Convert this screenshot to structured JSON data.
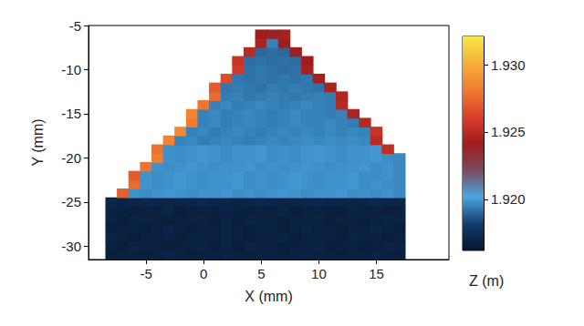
{
  "chart_data": {
    "type": "scatter",
    "x_label": "X (mm)",
    "y_label": "Y (mm)",
    "xlim": [
      -10,
      21.3
    ],
    "ylim": [
      -31.5,
      -5
    ],
    "xticks": [
      -5,
      0,
      5,
      10,
      15
    ],
    "yticks": [
      -30,
      -25,
      -20,
      -15,
      -10,
      -5
    ],
    "grid": false,
    "marker": "square",
    "colorbar": {
      "label": "Z (m)",
      "range": [
        1.9162,
        1.9321
      ],
      "ticks": [
        {
          "value": 1.92,
          "label": "1.920"
        },
        {
          "value": 1.925,
          "label": "1.925"
        },
        {
          "value": 1.93,
          "label": "1.930"
        }
      ]
    },
    "x": [
      -8,
      -7,
      -6,
      -5,
      -4,
      -3,
      -2,
      -1,
      0,
      1,
      2,
      3,
      4,
      5,
      6,
      7,
      8,
      9,
      10,
      11,
      12,
      13,
      14,
      15,
      16,
      17
    ],
    "y": [
      -31,
      -30,
      -29,
      -28,
      -27,
      -26,
      -25,
      -24,
      -23,
      -22,
      -21,
      -20,
      -19,
      -18,
      -17,
      -16,
      -15,
      -14,
      -13,
      -12,
      -11,
      -10,
      -9,
      -8,
      -7,
      -6
    ],
    "z": [
      [
        1.9167,
        1.9168,
        1.9168,
        1.9167,
        1.9168,
        1.9169,
        1.9168,
        1.9167,
        1.9168,
        1.9168,
        1.9169,
        1.9168,
        1.9167,
        1.9168,
        1.9168,
        1.9167,
        1.9168,
        1.9169,
        1.9168,
        1.9168,
        1.9167,
        1.9168,
        1.9168,
        1.9169,
        1.9168,
        1.9167
      ],
      [
        1.9168,
        1.9167,
        1.9169,
        1.9168,
        1.9168,
        1.9167,
        1.9168,
        1.9168,
        1.9169,
        1.9167,
        1.9168,
        1.9167,
        1.9169,
        1.9168,
        1.9168,
        1.9167,
        1.9168,
        1.9168,
        1.9169,
        1.9167,
        1.9168,
        1.9168,
        1.9167,
        1.9168,
        1.9169,
        1.9168
      ],
      [
        1.9169,
        1.9168,
        1.9167,
        1.9168,
        1.9168,
        1.9169,
        1.9167,
        1.9168,
        1.9168,
        1.9168,
        1.9169,
        1.9168,
        1.9167,
        1.9168,
        1.9168,
        1.9169,
        1.9167,
        1.9168,
        1.9168,
        1.9168,
        1.9167,
        1.9169,
        1.9168,
        1.9168,
        1.9167,
        1.9168
      ],
      [
        1.9167,
        1.9168,
        1.9168,
        1.9167,
        1.9168,
        1.9169,
        1.9168,
        1.9167,
        1.9168,
        1.9168,
        1.9169,
        1.9168,
        1.9167,
        1.9168,
        1.9168,
        1.9167,
        1.9168,
        1.9169,
        1.9168,
        1.9168,
        1.9167,
        1.9168,
        1.9168,
        1.9169,
        1.9168,
        1.9167
      ],
      [
        1.9168,
        1.9167,
        1.9169,
        1.9168,
        1.9168,
        1.9167,
        1.9168,
        1.9168,
        1.9169,
        1.9167,
        1.9168,
        1.9167,
        1.9169,
        1.9168,
        1.9168,
        1.9167,
        1.9168,
        1.9168,
        1.9169,
        1.9167,
        1.9168,
        1.9168,
        1.9167,
        1.9168,
        1.9169,
        1.9168
      ],
      [
        1.9169,
        1.9168,
        1.9167,
        1.9168,
        1.9168,
        1.9169,
        1.9167,
        1.9168,
        1.9168,
        1.9168,
        1.9169,
        1.9168,
        1.9167,
        1.9168,
        1.9168,
        1.9169,
        1.9167,
        1.9168,
        1.9168,
        1.9168,
        1.9167,
        1.9169,
        1.9168,
        1.9168,
        1.9167,
        1.9168
      ],
      [
        1.917,
        1.9169,
        1.917,
        1.9171,
        1.917,
        1.9169,
        1.917,
        1.917,
        1.9171,
        1.917,
        1.917,
        1.9169,
        1.917,
        1.9171,
        1.917,
        1.9169,
        1.917,
        1.917,
        1.9171,
        1.917,
        1.917,
        1.9169,
        1.917,
        1.9171,
        1.917,
        1.917
      ],
      [
        null,
        1.9272,
        1.9198,
        1.9197,
        1.9198,
        1.9199,
        1.9198,
        1.9197,
        1.9198,
        1.9198,
        1.9199,
        1.9197,
        1.9198,
        1.9197,
        1.9198,
        1.9199,
        1.9198,
        1.9197,
        1.9198,
        1.9198,
        1.9199,
        1.9197,
        1.9198,
        1.9197,
        1.9198,
        1.9196
      ],
      [
        null,
        null,
        1.9276,
        1.9198,
        1.9197,
        1.9198,
        1.9199,
        1.9198,
        1.9197,
        1.9198,
        1.9198,
        1.9199,
        1.9197,
        1.9198,
        1.9197,
        1.9198,
        1.9199,
        1.9198,
        1.9197,
        1.9198,
        1.9198,
        1.9199,
        1.9197,
        1.9198,
        1.9197,
        1.9196
      ],
      [
        null,
        null,
        1.927,
        1.9198,
        1.9197,
        1.9198,
        1.9199,
        1.9198,
        1.9197,
        1.9198,
        1.9198,
        1.9199,
        1.9197,
        1.9198,
        1.9197,
        1.9198,
        1.9199,
        1.9198,
        1.9197,
        1.9198,
        1.9198,
        1.9199,
        1.9197,
        1.9197,
        1.9198,
        1.9196
      ],
      [
        null,
        null,
        null,
        1.9279,
        1.9198,
        1.9197,
        1.9198,
        1.9199,
        1.9198,
        1.9197,
        1.9198,
        1.9198,
        1.9199,
        1.9197,
        1.9198,
        1.9197,
        1.9198,
        1.9199,
        1.9198,
        1.9197,
        1.9198,
        1.9198,
        1.9199,
        1.9197,
        1.9198,
        1.9196
      ],
      [
        null,
        null,
        null,
        null,
        1.9282,
        1.9198,
        1.9197,
        1.9198,
        1.9199,
        1.9198,
        1.9197,
        1.9198,
        1.9198,
        1.9199,
        1.9197,
        1.9198,
        1.9197,
        1.9198,
        1.9199,
        1.9198,
        1.9197,
        1.9198,
        1.9198,
        1.9199,
        1.9197,
        1.9196
      ],
      [
        null,
        null,
        null,
        null,
        1.9278,
        1.9198,
        1.9197,
        1.9198,
        1.9199,
        1.9198,
        1.9197,
        1.9198,
        1.9198,
        1.9199,
        1.9197,
        1.9198,
        1.9197,
        1.9198,
        1.9199,
        1.9198,
        1.9197,
        1.9198,
        1.9198,
        1.9199,
        1.9252,
        null
      ],
      [
        null,
        null,
        null,
        null,
        null,
        1.9284,
        1.9195,
        1.9196,
        1.9194,
        1.9195,
        1.9196,
        1.9195,
        1.9194,
        1.9195,
        1.9196,
        1.9195,
        1.9196,
        1.9197,
        1.9196,
        1.9197,
        1.9196,
        1.9197,
        1.9196,
        1.925,
        null,
        null
      ],
      [
        null,
        null,
        null,
        null,
        null,
        null,
        1.9286,
        1.9195,
        1.9196,
        1.9194,
        1.9195,
        1.9196,
        1.9195,
        1.9194,
        1.9195,
        1.9196,
        1.9195,
        1.9196,
        1.9195,
        1.9196,
        1.9195,
        1.9196,
        1.9195,
        1.9255,
        null,
        null
      ],
      [
        null,
        null,
        null,
        null,
        null,
        null,
        null,
        1.9281,
        1.9195,
        1.9196,
        1.9194,
        1.9195,
        1.9196,
        1.9195,
        1.9194,
        1.9195,
        1.9196,
        1.9195,
        1.9195,
        1.9196,
        1.9195,
        1.9194,
        1.9248,
        null,
        null,
        null
      ],
      [
        null,
        null,
        null,
        null,
        null,
        null,
        null,
        1.9285,
        1.9195,
        1.9196,
        1.9194,
        1.9195,
        1.9196,
        1.9195,
        1.9194,
        1.9195,
        1.9196,
        1.9195,
        1.9195,
        1.9194,
        1.9195,
        1.9246,
        null,
        null,
        null,
        null
      ],
      [
        null,
        null,
        null,
        null,
        null,
        null,
        null,
        null,
        1.9279,
        1.9195,
        1.9196,
        1.9194,
        1.9195,
        1.9196,
        1.9195,
        1.9194,
        1.9195,
        1.9196,
        1.9195,
        1.9194,
        1.9249,
        null,
        null,
        null,
        null,
        null
      ],
      [
        null,
        null,
        null,
        null,
        null,
        null,
        null,
        null,
        null,
        1.9276,
        1.9194,
        1.9195,
        1.9193,
        1.9194,
        1.9195,
        1.9194,
        1.9193,
        1.9194,
        1.9195,
        1.9194,
        1.9247,
        null,
        null,
        null,
        null,
        null
      ],
      [
        null,
        null,
        null,
        null,
        null,
        null,
        null,
        null,
        null,
        1.927,
        1.9193,
        1.9194,
        1.9193,
        1.9192,
        1.9194,
        1.9193,
        1.9194,
        1.9193,
        1.9192,
        1.9245,
        null,
        null,
        null,
        null,
        null,
        null
      ],
      [
        null,
        null,
        null,
        null,
        null,
        null,
        null,
        null,
        null,
        null,
        1.9265,
        1.9193,
        1.9192,
        1.9193,
        1.9192,
        1.9193,
        1.9192,
        1.9193,
        1.9243,
        null,
        null,
        null,
        null,
        null,
        null,
        null
      ],
      [
        null,
        null,
        null,
        null,
        null,
        null,
        null,
        null,
        null,
        null,
        null,
        1.9258,
        1.9192,
        1.9193,
        1.9192,
        1.9191,
        1.9192,
        1.9244,
        null,
        null,
        null,
        null,
        null,
        null,
        null,
        null
      ],
      [
        null,
        null,
        null,
        null,
        null,
        null,
        null,
        null,
        null,
        null,
        null,
        1.9255,
        1.9191,
        1.9192,
        1.9191,
        1.9192,
        1.9191,
        1.9241,
        null,
        null,
        null,
        null,
        null,
        null,
        null,
        null
      ],
      [
        null,
        null,
        null,
        null,
        null,
        null,
        null,
        null,
        null,
        null,
        null,
        null,
        1.925,
        1.919,
        1.9191,
        1.919,
        1.924,
        null,
        null,
        null,
        null,
        null,
        null,
        null,
        null,
        null
      ],
      [
        null,
        null,
        null,
        null,
        null,
        null,
        null,
        null,
        null,
        null,
        null,
        null,
        null,
        1.9246,
        1.9195,
        1.9242,
        null,
        null,
        null,
        null,
        null,
        null,
        null,
        null,
        null,
        null
      ],
      [
        null,
        null,
        null,
        null,
        null,
        null,
        null,
        null,
        null,
        null,
        null,
        null,
        null,
        1.9242,
        1.9238,
        1.9244,
        null,
        null,
        null,
        null,
        null,
        null,
        null,
        null,
        null,
        null
      ]
    ]
  }
}
